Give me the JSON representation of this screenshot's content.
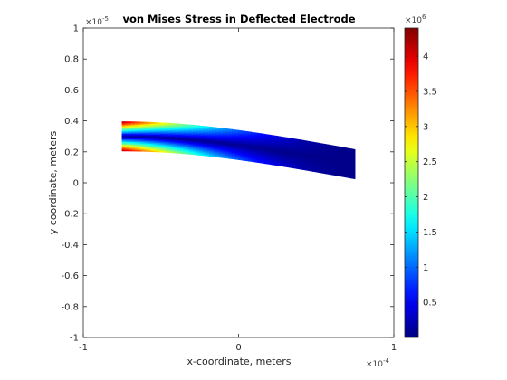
{
  "chart_data": {
    "type": "heatmap",
    "title": "von Mises Stress in Deflected Electrode",
    "xlabel": "x-coordinate, meters",
    "ylabel": "y coordinate, meters",
    "x_exponent_base": "×10",
    "x_exponent_power": "-4",
    "y_exponent_base": "×10",
    "y_exponent_power": "-5",
    "xlim": [
      -1,
      1
    ],
    "ylim": [
      -1,
      1
    ],
    "x_ticks": [
      -1,
      0,
      1
    ],
    "y_ticks": [
      -1,
      -0.8,
      -0.6,
      -0.4,
      -0.2,
      0,
      0.2,
      0.4,
      0.6,
      0.8,
      1
    ],
    "x_tick_labels": [
      "-1",
      "0",
      "1"
    ],
    "y_tick_labels": [
      "-1",
      "-0.8",
      "-0.6",
      "-0.4",
      "-0.2",
      "0",
      "0.2",
      "0.4",
      "0.6",
      "0.8",
      "1"
    ],
    "colorbar": {
      "exponent_base": "×10",
      "exponent_power": "6",
      "clim": [
        0,
        4.4
      ],
      "colormap": "jet",
      "ticks": [
        0.5,
        1,
        1.5,
        2,
        2.5,
        3,
        3.5,
        4
      ],
      "tick_labels": [
        "0.5",
        "1",
        "1.5",
        "2",
        "2.5",
        "3",
        "3.5",
        "4"
      ]
    },
    "beam": {
      "x_range": [
        -0.75,
        0.75
      ],
      "fixed_end_x": -0.75,
      "centerline_y_at_fixed_end": 0.3,
      "centerline_y_at_free_end": 0.12,
      "thickness": 0.19,
      "max_stress": 4.4,
      "stress_at_surface_near_fixed_end": 4.3,
      "stress_at_free_end": 0.05
    },
    "grid": false,
    "colors": {
      "axes": "#262626",
      "background": "#ffffff"
    }
  }
}
